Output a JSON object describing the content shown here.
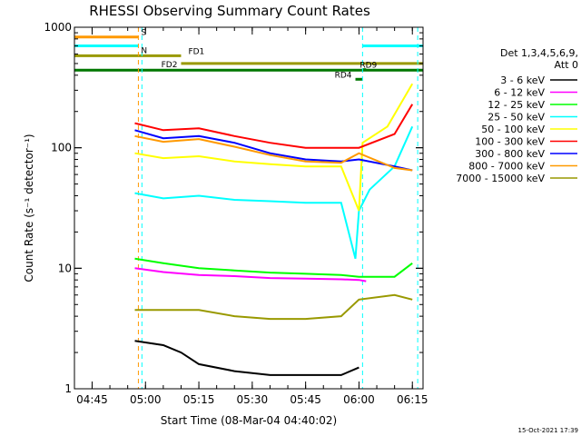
{
  "chart_data": {
    "type": "line",
    "title": "RHESSI Observing Summary Count Rates",
    "xlabel": "Start Time (08-Mar-04 04:40:02)",
    "ylabel": "Count Rate (s⁻¹ detector⁻¹)",
    "y_scale": "log",
    "ylim": [
      1,
      1000
    ],
    "xlim": [
      "04:40:02",
      "06:18:00"
    ],
    "y_ticks": [
      "1",
      "10",
      "100",
      "1000"
    ],
    "x_ticks": [
      "04:45",
      "05:00",
      "05:15",
      "05:30",
      "05:45",
      "06:00",
      "06:15"
    ],
    "legend_header": [
      "Det 1,3,4,5,6,9,",
      "Att 0"
    ],
    "legend_position": "right",
    "footer_date": "15-Oct-2021 17:39",
    "series": [
      {
        "name": "3 - 6 keV",
        "color": "#000000",
        "x": [
          "04:57",
          "05:05",
          "05:10",
          "05:15",
          "05:25",
          "05:35",
          "05:45",
          "05:55",
          "06:00"
        ],
        "values": [
          2.5,
          2.3,
          2.0,
          1.6,
          1.4,
          1.3,
          1.3,
          1.3,
          1.5
        ]
      },
      {
        "name": "6 - 12 keV",
        "color": "#ff00ff",
        "x": [
          "04:57",
          "05:05",
          "05:15",
          "05:25",
          "05:35",
          "05:45",
          "05:55",
          "06:00",
          "06:02"
        ],
        "values": [
          10,
          9.3,
          8.8,
          8.6,
          8.3,
          8.2,
          8.1,
          8.0,
          7.8
        ]
      },
      {
        "name": "12 - 25 keV",
        "color": "#00ff00",
        "x": [
          "04:57",
          "05:05",
          "05:15",
          "05:25",
          "05:35",
          "05:45",
          "05:55",
          "06:00",
          "06:10",
          "06:15"
        ],
        "values": [
          12,
          11,
          10,
          9.6,
          9.2,
          9.0,
          8.8,
          8.5,
          8.5,
          11
        ]
      },
      {
        "name": "25 - 50 keV",
        "color": "#00ffff",
        "x": [
          "04:57",
          "05:05",
          "05:15",
          "05:25",
          "05:35",
          "05:45",
          "05:55",
          "05:59",
          "06:00",
          "06:03",
          "06:10",
          "06:15"
        ],
        "values": [
          42,
          38,
          40,
          37,
          36,
          35,
          35,
          12,
          30,
          45,
          70,
          150
        ]
      },
      {
        "name": "50 - 100 keV",
        "color": "#ffff00",
        "x": [
          "04:57",
          "05:05",
          "05:15",
          "05:25",
          "05:35",
          "05:45",
          "05:55",
          "06:00",
          "06:01",
          "06:08",
          "06:15"
        ],
        "values": [
          90,
          82,
          85,
          77,
          73,
          70,
          70,
          30,
          110,
          150,
          340
        ]
      },
      {
        "name": "100 - 300 keV",
        "color": "#ff0000",
        "x": [
          "04:57",
          "05:05",
          "05:15",
          "05:25",
          "05:35",
          "05:45",
          "05:55",
          "06:00",
          "06:10",
          "06:15"
        ],
        "values": [
          160,
          140,
          145,
          125,
          110,
          100,
          100,
          100,
          130,
          230
        ]
      },
      {
        "name": "300 - 800 keV",
        "color": "#0000ff",
        "x": [
          "04:57",
          "05:05",
          "05:15",
          "05:25",
          "05:35",
          "05:45",
          "05:55",
          "06:00",
          "06:10",
          "06:15"
        ],
        "values": [
          140,
          120,
          125,
          110,
          90,
          80,
          77,
          80,
          70,
          65
        ]
      },
      {
        "name": "800 - 7000 keV",
        "color": "#ff9900",
        "x": [
          "04:57",
          "05:05",
          "05:15",
          "05:25",
          "05:35",
          "05:45",
          "05:55",
          "06:00",
          "06:10",
          "06:15"
        ],
        "values": [
          125,
          112,
          118,
          102,
          87,
          77,
          75,
          90,
          68,
          65
        ]
      },
      {
        "name": "7000 - 15000 keV",
        "color": "#999900",
        "x": [
          "04:57",
          "05:05",
          "05:15",
          "05:25",
          "05:35",
          "05:45",
          "05:55",
          "06:00",
          "06:10",
          "06:15"
        ],
        "values": [
          4.5,
          4.5,
          4.5,
          4.0,
          3.8,
          3.8,
          4.0,
          5.5,
          6.0,
          5.5
        ]
      }
    ],
    "status_bars": [
      {
        "label": "S",
        "color": "#ff9900",
        "start": "04:40:02",
        "end": "04:58",
        "y": 830
      },
      {
        "label": "N",
        "color": "#00ffff",
        "start": "04:40:02",
        "end": "04:58",
        "y": 700
      },
      {
        "label": "N",
        "color": "#00ffff",
        "start": "06:01",
        "end": "06:18",
        "y": 700
      },
      {
        "label": "FD1",
        "color": "#999900",
        "start": "04:40:02",
        "end": "05:10",
        "y": 580
      },
      {
        "label": "FD2",
        "color": "#999900",
        "start": "05:10",
        "end": "06:18",
        "y": 500
      },
      {
        "label": "",
        "color": "#007700",
        "start": "04:40:02",
        "end": "06:18",
        "y": 440
      },
      {
        "label": "RD9",
        "color": "#007700",
        "start": "06:01",
        "end": "06:02",
        "y": 445
      },
      {
        "label": "RD4",
        "color": "#007700",
        "start": "05:59",
        "end": "06:01",
        "y": 370
      }
    ],
    "vertical_markers": [
      {
        "time": "04:58:00",
        "color": "#ff9900"
      },
      {
        "time": "04:59:00",
        "color": "#00ffff"
      },
      {
        "time": "06:01:00",
        "color": "#00ffff"
      },
      {
        "time": "06:16:30",
        "color": "#00ffff"
      }
    ]
  }
}
